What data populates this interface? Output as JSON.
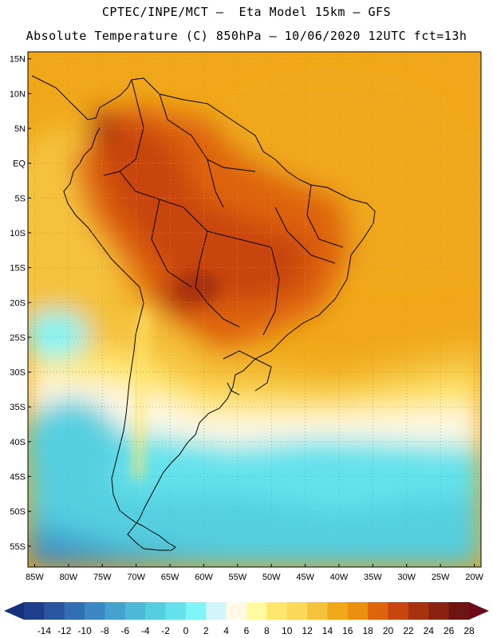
{
  "header": {
    "title_line1": "CPTEC/INPE/MCT –  Eta Model 15km – GFS",
    "title_line2": "Absolute Temperature (C) 850hPa – 10/06/2020 12UTC fct=13h"
  },
  "map": {
    "lat_labels": [
      "15N",
      "10N",
      "5N",
      "EQ",
      "5S",
      "10S",
      "15S",
      "20S",
      "25S",
      "30S",
      "35S",
      "40S",
      "45S",
      "50S",
      "55S"
    ],
    "lon_labels": [
      "85W",
      "80W",
      "75W",
      "70W",
      "65W",
      "60W",
      "55W",
      "50W",
      "45W",
      "40W",
      "35W",
      "30W",
      "25W",
      "20W"
    ],
    "extent": {
      "lon_min": -86,
      "lon_max": -19,
      "lat_min": -58,
      "lat_max": 16
    },
    "grid_style": "dotted"
  },
  "colorbar": {
    "labels": [
      "-14",
      "-12",
      "-10",
      "-8",
      "-6",
      "-4",
      "-2",
      "0",
      "2",
      "4",
      "6",
      "8",
      "10",
      "12",
      "14",
      "16",
      "18",
      "20",
      "22",
      "24",
      "26",
      "28"
    ],
    "colors": [
      "#1f3f8c",
      "#2a56a0",
      "#3070b2",
      "#3c88c4",
      "#45a2cc",
      "#4cbad6",
      "#55cfe0",
      "#63e2ec",
      "#7ff5f8",
      "#d2f4fb",
      "#fff8e4",
      "#fffaa0",
      "#ffe66e",
      "#fbd75a",
      "#f5c23c",
      "#f0a81a",
      "#ec8e10",
      "#de6410",
      "#c84510",
      "#a83210",
      "#8a2212",
      "#6e1412"
    ],
    "min_arrow_color": "#16307a",
    "max_arrow_color": "#6e0a18"
  }
}
